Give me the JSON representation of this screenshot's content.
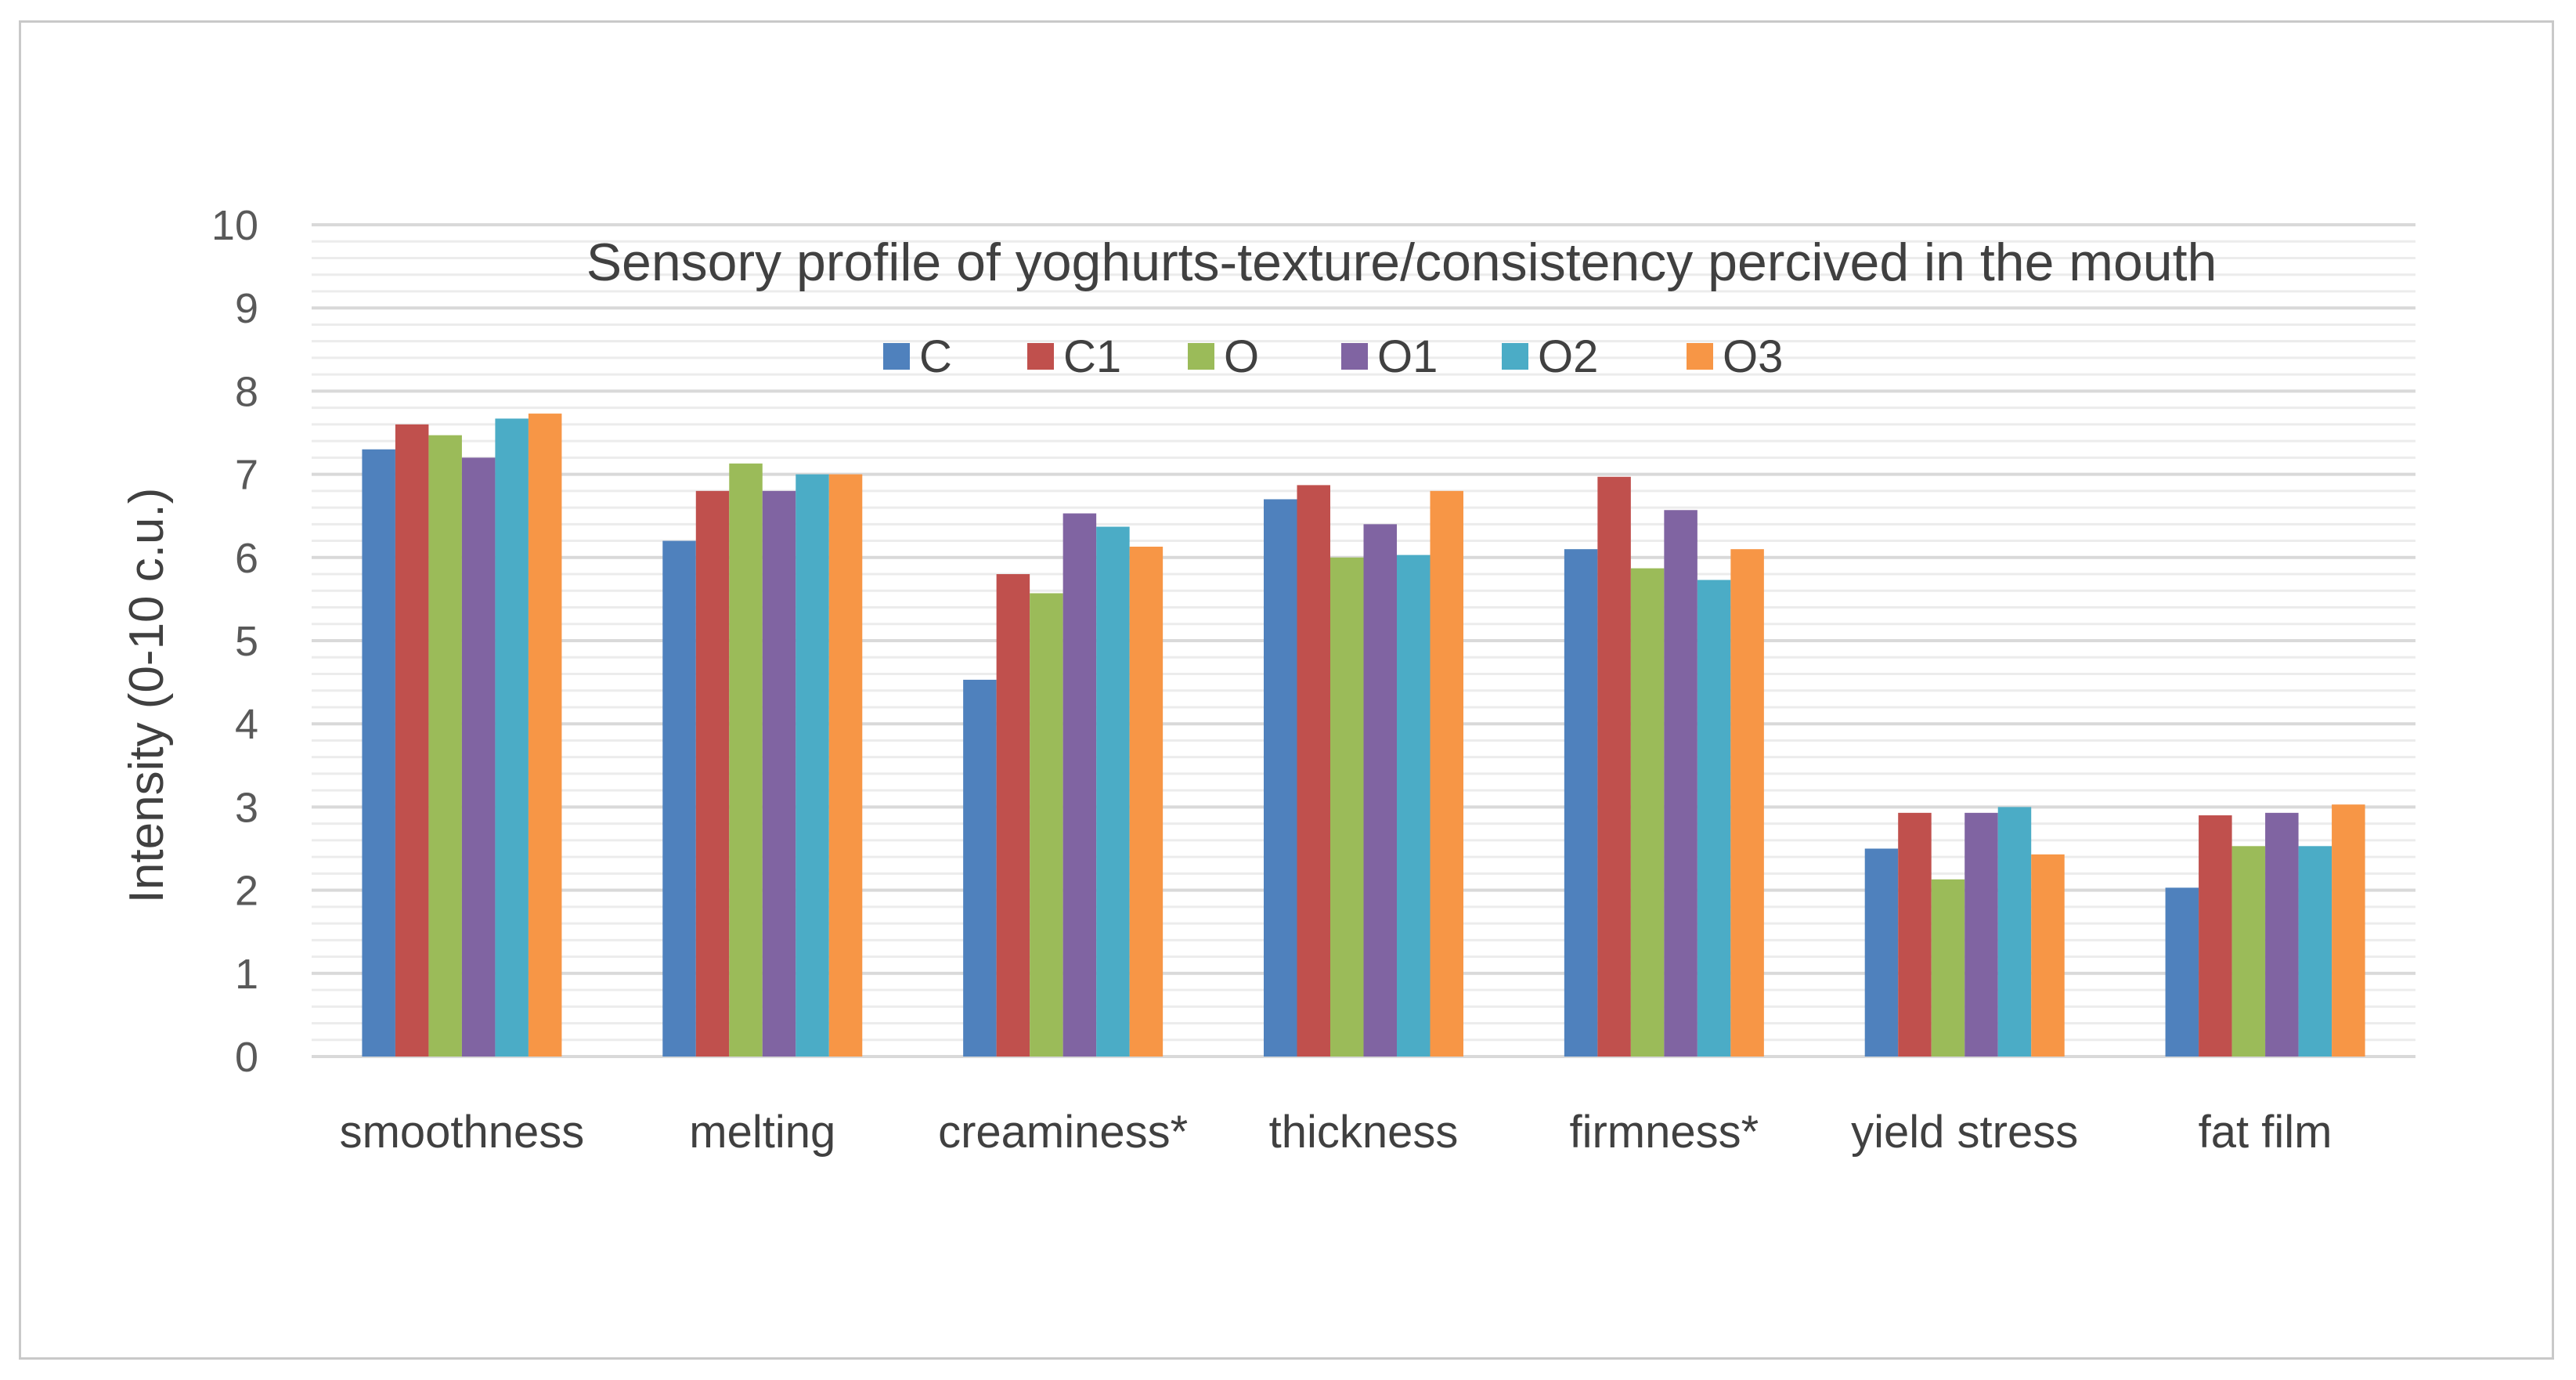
{
  "chart_data": {
    "type": "bar",
    "title": "Sensory profile of yoghurts-texture/consistency percived in the mouth",
    "xlabel": "",
    "ylabel": "Intensity (0-10 c.u.)",
    "ylim": [
      0,
      10
    ],
    "yticks": [
      "0",
      "1",
      "2",
      "3",
      "4",
      "5",
      "6",
      "7",
      "8",
      "9",
      "10"
    ],
    "grid": true,
    "legend_position": "top",
    "categories": [
      "smoothness",
      "melting",
      "creaminess*",
      "thickness",
      "firmness*",
      "yield stress",
      "fat film"
    ],
    "series": [
      {
        "name": "C",
        "color": "#4f81bd",
        "values": [
          7.3,
          6.2,
          4.53,
          6.7,
          6.1,
          2.5,
          2.03
        ]
      },
      {
        "name": "C1",
        "color": "#c0504d",
        "values": [
          7.6,
          6.8,
          5.8,
          6.87,
          6.97,
          2.93,
          2.9
        ]
      },
      {
        "name": "O",
        "color": "#9bbb59",
        "values": [
          7.47,
          7.13,
          5.57,
          6.0,
          5.87,
          2.13,
          2.53
        ]
      },
      {
        "name": "O1",
        "color": "#8064a2",
        "values": [
          7.2,
          6.8,
          6.53,
          6.4,
          6.57,
          2.93,
          2.93
        ]
      },
      {
        "name": "O2",
        "color": "#4bacc6",
        "values": [
          7.67,
          7.0,
          6.37,
          6.03,
          5.73,
          3.0,
          2.53
        ]
      },
      {
        "name": "O3",
        "color": "#f79646",
        "values": [
          7.73,
          7.0,
          6.13,
          6.8,
          6.1,
          2.43,
          3.03
        ]
      }
    ]
  }
}
